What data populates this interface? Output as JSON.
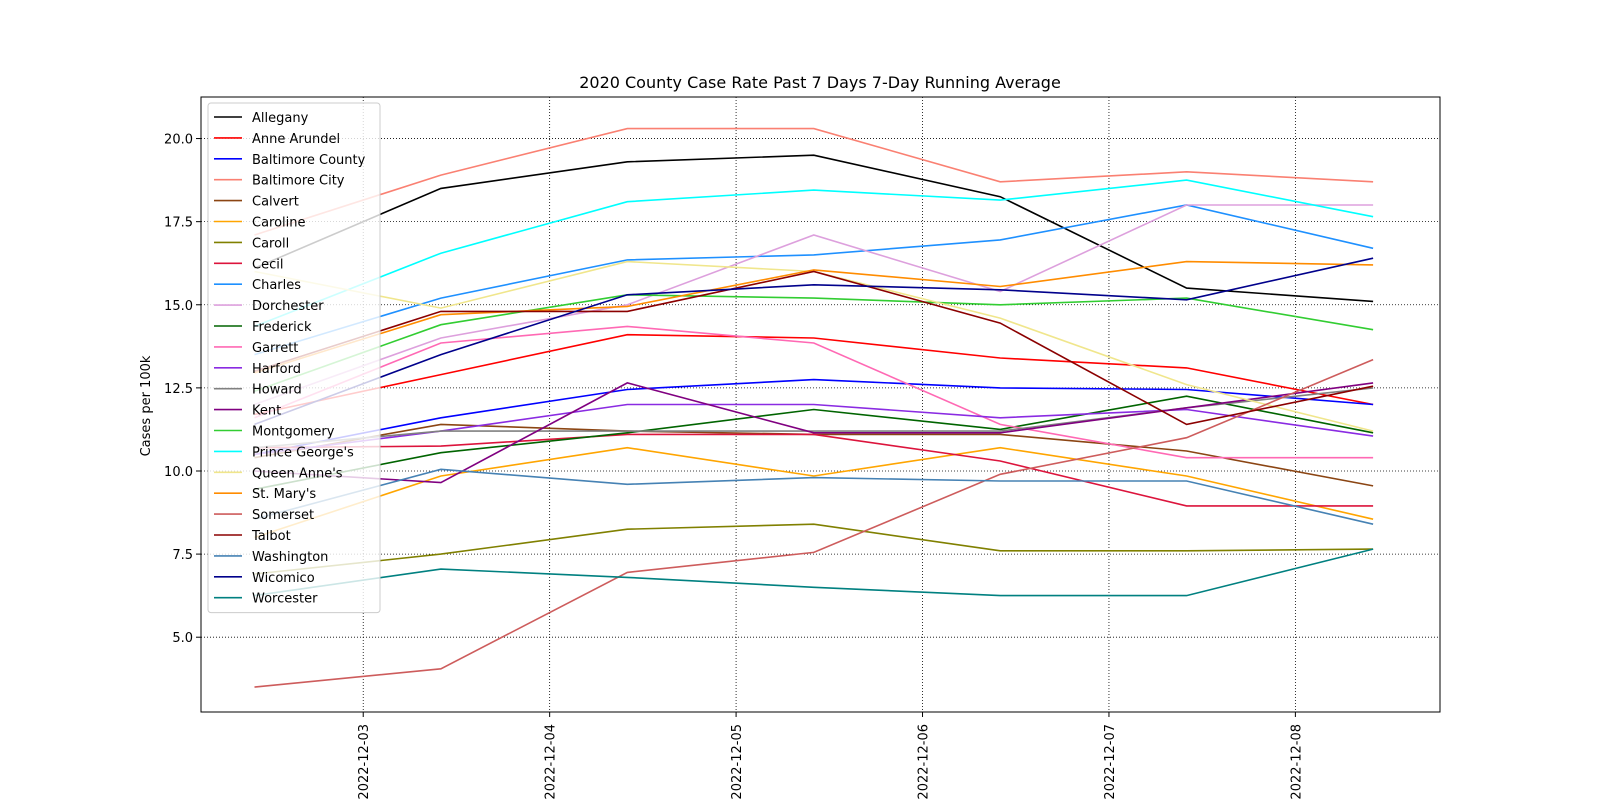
{
  "chart_data": {
    "type": "line",
    "title": "2020 County Case Rate  Past 7 Days 7-Day Running Average",
    "ylabel": "Cases per 100k",
    "xlabel": "",
    "xlim": [
      "2022-12-02T03:07",
      "2022-12-08T18:37"
    ],
    "ylim": [
      2.75,
      21.25
    ],
    "x_ticks": [
      "2022-12-03",
      "2022-12-04",
      "2022-12-05",
      "2022-12-06",
      "2022-12-07",
      "2022-12-08"
    ],
    "y_ticks": [
      "5.0",
      "7.5",
      "10.0",
      "12.5",
      "15.0",
      "17.5",
      "20.0"
    ],
    "grid": true,
    "legend": "top-left",
    "x": [
      "2022-12-02T10:00",
      "2022-12-03T10:00",
      "2022-12-04T10:00",
      "2022-12-05T10:00",
      "2022-12-06T10:00",
      "2022-12-07T10:00",
      "2022-12-08T10:00"
    ],
    "series": [
      {
        "name": "Allegany",
        "color": "#000000",
        "values": [
          16.1,
          18.5,
          19.3,
          19.5,
          18.25,
          15.5,
          15.1
        ]
      },
      {
        "name": "Anne Arundel",
        "color": "#ff0000",
        "values": [
          11.7,
          12.9,
          14.1,
          14.0,
          13.4,
          13.1,
          12.0
        ]
      },
      {
        "name": "Baltimore County",
        "color": "#0000ff",
        "values": [
          10.5,
          11.6,
          12.45,
          12.75,
          12.5,
          12.45,
          12.0
        ]
      },
      {
        "name": "Baltimore City",
        "color": "#fa8072",
        "values": [
          17.1,
          18.9,
          20.3,
          20.3,
          18.7,
          19.0,
          18.7
        ]
      },
      {
        "name": "Calvert",
        "color": "#8b4513",
        "values": [
          10.4,
          11.4,
          11.2,
          11.1,
          11.1,
          10.6,
          9.55
        ]
      },
      {
        "name": "Caroline",
        "color": "#ffa500",
        "values": [
          8.0,
          9.85,
          10.7,
          9.85,
          10.7,
          9.85,
          8.55
        ]
      },
      {
        "name": "Caroll",
        "color": "#808000",
        "values": [
          6.9,
          7.5,
          8.25,
          8.4,
          7.6,
          7.6,
          7.65
        ]
      },
      {
        "name": "Cecil",
        "color": "#dc143c",
        "values": [
          10.7,
          10.75,
          11.1,
          11.1,
          10.3,
          8.95,
          8.95
        ]
      },
      {
        "name": "Charles",
        "color": "#1e90ff",
        "values": [
          13.5,
          15.2,
          16.35,
          16.5,
          16.95,
          18.0,
          16.7
        ]
      },
      {
        "name": "Dorchester",
        "color": "#dda0dd",
        "values": [
          12.0,
          14.0,
          15.0,
          17.1,
          15.4,
          18.0,
          18.0
        ]
      },
      {
        "name": "Frederick",
        "color": "#006400",
        "values": [
          9.45,
          10.55,
          11.15,
          11.85,
          11.25,
          12.25,
          11.15
        ]
      },
      {
        "name": "Garrett",
        "color": "#ff69b4",
        "values": [
          11.6,
          13.85,
          14.35,
          13.85,
          11.4,
          10.4,
          10.4
        ]
      },
      {
        "name": "Harford",
        "color": "#8a2be2",
        "values": [
          10.5,
          11.2,
          12.0,
          12.0,
          11.6,
          11.85,
          11.05
        ]
      },
      {
        "name": "Howard",
        "color": "#808080",
        "values": [
          10.7,
          11.2,
          11.2,
          11.2,
          11.2,
          11.9,
          12.5
        ]
      },
      {
        "name": "Kent",
        "color": "#800080",
        "values": [
          10.0,
          9.65,
          12.65,
          11.15,
          11.15,
          11.9,
          12.65
        ]
      },
      {
        "name": "Montgomery",
        "color": "#32cd32",
        "values": [
          12.4,
          14.4,
          15.3,
          15.2,
          15.0,
          15.2,
          14.25
        ]
      },
      {
        "name": "Prince George's",
        "color": "#00ffff",
        "values": [
          14.35,
          16.55,
          18.1,
          18.45,
          18.15,
          18.75,
          17.65
        ]
      },
      {
        "name": "Queen Anne's",
        "color": "#f0e68c",
        "values": [
          16.0,
          14.9,
          16.3,
          16.0,
          14.6,
          12.6,
          11.2
        ]
      },
      {
        "name": "St. Mary's",
        "color": "#ff8c00",
        "values": [
          12.95,
          14.7,
          14.95,
          16.05,
          15.55,
          16.3,
          16.2
        ]
      },
      {
        "name": "Somerset",
        "color": "#cd5c5c",
        "values": [
          3.5,
          4.05,
          6.95,
          7.55,
          9.9,
          11.0,
          13.35
        ]
      },
      {
        "name": "Talbot",
        "color": "#8b0000",
        "values": [
          13.0,
          14.8,
          14.8,
          16.0,
          14.45,
          11.4,
          12.55
        ]
      },
      {
        "name": "Washington",
        "color": "#4682b4",
        "values": [
          8.55,
          10.05,
          9.6,
          9.8,
          9.7,
          9.7,
          8.4
        ]
      },
      {
        "name": "Wicomico",
        "color": "#00008b",
        "values": [
          11.4,
          13.5,
          15.3,
          15.6,
          15.45,
          15.15,
          16.4
        ]
      },
      {
        "name": "Worcester",
        "color": "#008080",
        "values": [
          6.25,
          7.05,
          6.8,
          6.5,
          6.25,
          6.25,
          7.65
        ]
      }
    ]
  }
}
